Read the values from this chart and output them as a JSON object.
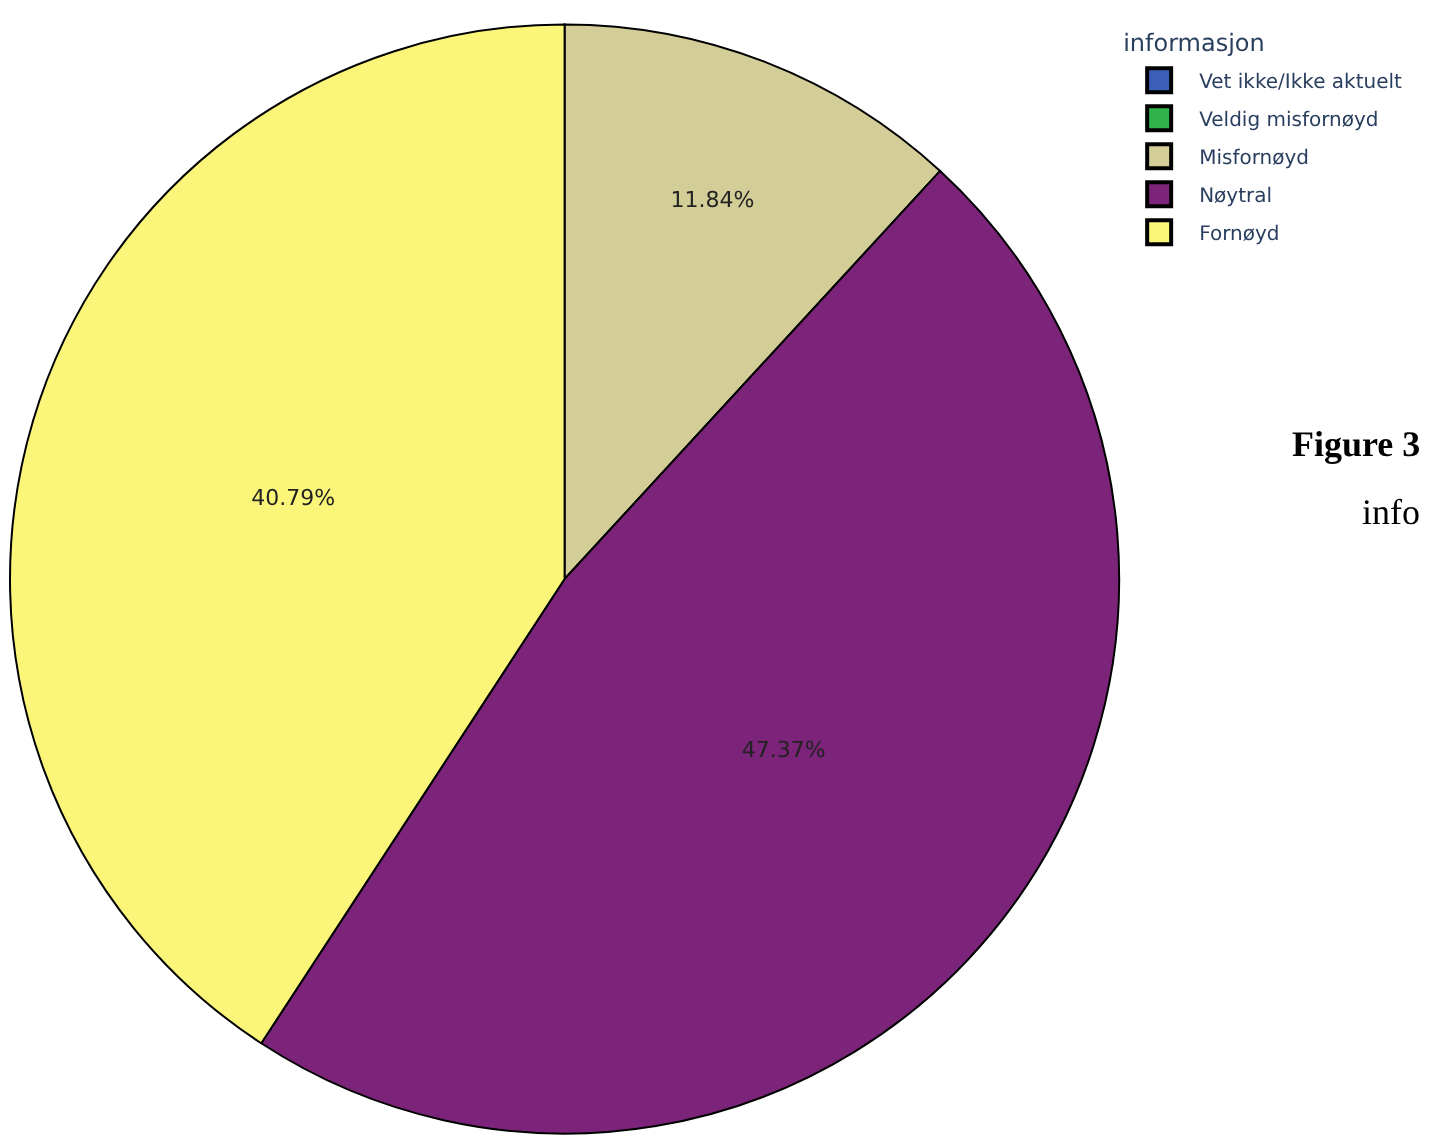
{
  "chart_data": {
    "type": "pie",
    "legend_title": "informasjon",
    "categories": [
      "Vet ikke/Ikke aktuelt",
      "Veldig misfornøyd",
      "Misfornøyd",
      "Nøytral",
      "Fornøyd"
    ],
    "values": [
      0,
      0,
      11.84,
      47.37,
      40.79
    ],
    "value_labels": [
      null,
      null,
      "11.84%",
      "47.37%",
      "40.79%"
    ],
    "colors": [
      "#3b5fb8",
      "#2fb34a",
      "#d3cd98",
      "#7b2479",
      "#fbf67a"
    ],
    "legend": "top right",
    "annotations": [
      "Figure 3",
      "info"
    ]
  }
}
